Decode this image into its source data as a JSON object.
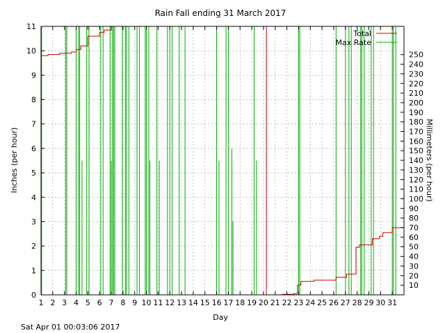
{
  "chart_data": {
    "type": "line",
    "title": "Rain Fall ending 31 March 2017",
    "xlabel": "Day",
    "ylabel": "Inches (per hour)",
    "y2label": "Millimeters (per hour)",
    "xlim": [
      1,
      32
    ],
    "ylim": [
      0,
      11
    ],
    "y2lim": [
      0,
      279.4
    ],
    "x_ticks": [
      1,
      2,
      3,
      4,
      5,
      6,
      7,
      8,
      9,
      10,
      11,
      12,
      13,
      14,
      15,
      16,
      17,
      18,
      19,
      20,
      21,
      22,
      23,
      24,
      25,
      26,
      27,
      28,
      29,
      30,
      31
    ],
    "y_ticks": [
      0,
      1,
      2,
      3,
      4,
      5,
      6,
      7,
      8,
      9,
      10,
      11
    ],
    "y2_ticks": [
      10,
      20,
      30,
      40,
      50,
      60,
      70,
      80,
      90,
      100,
      110,
      120,
      130,
      140,
      150,
      160,
      170,
      180,
      190,
      200,
      210,
      220,
      230,
      240,
      250
    ],
    "grid": true,
    "legend_position": "top-right",
    "series": [
      {
        "name": "Total",
        "color": "#cc0000",
        "style": "step",
        "points": [
          [
            1.0,
            9.8
          ],
          [
            1.6,
            9.85
          ],
          [
            2.6,
            9.9
          ],
          [
            3.6,
            9.95
          ],
          [
            4.0,
            10.05
          ],
          [
            4.4,
            10.2
          ],
          [
            5.0,
            10.6
          ],
          [
            6.0,
            10.75
          ],
          [
            6.4,
            10.85
          ],
          [
            7.0,
            11.0
          ],
          [
            20.2,
            11.0
          ],
          [
            20.25,
            0.0
          ],
          [
            21.6,
            0.02
          ],
          [
            22.6,
            0.05
          ],
          [
            22.9,
            0.4
          ],
          [
            23.2,
            0.55
          ],
          [
            24.3,
            0.6
          ],
          [
            26.2,
            0.72
          ],
          [
            27.1,
            0.85
          ],
          [
            27.9,
            1.95
          ],
          [
            28.2,
            2.05
          ],
          [
            29.3,
            2.3
          ],
          [
            29.9,
            2.4
          ],
          [
            30.2,
            2.55
          ],
          [
            31.0,
            2.75
          ],
          [
            32.0,
            2.75
          ]
        ]
      },
      {
        "name": "Max Rate",
        "color": "#00aa00",
        "style": "impulse",
        "points": [
          [
            1.05,
            11
          ],
          [
            3.1,
            11
          ],
          [
            3.2,
            11
          ],
          [
            4.0,
            11
          ],
          [
            4.2,
            11
          ],
          [
            4.3,
            11
          ],
          [
            4.5,
            5.5
          ],
          [
            4.9,
            11
          ],
          [
            5.1,
            11
          ],
          [
            6.1,
            11
          ],
          [
            6.3,
            11
          ],
          [
            6.9,
            11
          ],
          [
            7.0,
            5.5
          ],
          [
            7.1,
            11
          ],
          [
            7.2,
            11
          ],
          [
            7.3,
            11
          ],
          [
            7.95,
            11
          ],
          [
            8.2,
            11
          ],
          [
            8.3,
            11
          ],
          [
            8.5,
            11
          ],
          [
            9.2,
            11
          ],
          [
            9.4,
            11
          ],
          [
            9.9,
            11
          ],
          [
            10.0,
            11
          ],
          [
            10.2,
            11
          ],
          [
            10.3,
            5.5
          ],
          [
            10.9,
            11
          ],
          [
            11.1,
            5.5
          ],
          [
            11.8,
            11
          ],
          [
            12.0,
            11
          ],
          [
            12.2,
            11
          ],
          [
            12.8,
            11
          ],
          [
            13.3,
            11
          ],
          [
            16.0,
            11
          ],
          [
            16.2,
            5.5
          ],
          [
            16.8,
            11
          ],
          [
            17.0,
            11
          ],
          [
            17.3,
            6.0
          ],
          [
            17.4,
            3.0
          ],
          [
            19.2,
            11
          ],
          [
            19.4,
            5.5
          ],
          [
            23.0,
            11
          ],
          [
            23.1,
            11
          ],
          [
            26.2,
            11
          ],
          [
            27.0,
            11
          ],
          [
            27.3,
            11
          ],
          [
            27.5,
            11
          ],
          [
            28.3,
            11
          ],
          [
            28.4,
            11
          ],
          [
            28.6,
            11
          ],
          [
            29.2,
            11
          ],
          [
            29.4,
            11
          ],
          [
            31.0,
            11
          ],
          [
            31.1,
            11
          ],
          [
            31.3,
            11
          ]
        ]
      }
    ],
    "footer_timestamp": "Sat Apr 01 00:03:06 2017"
  }
}
